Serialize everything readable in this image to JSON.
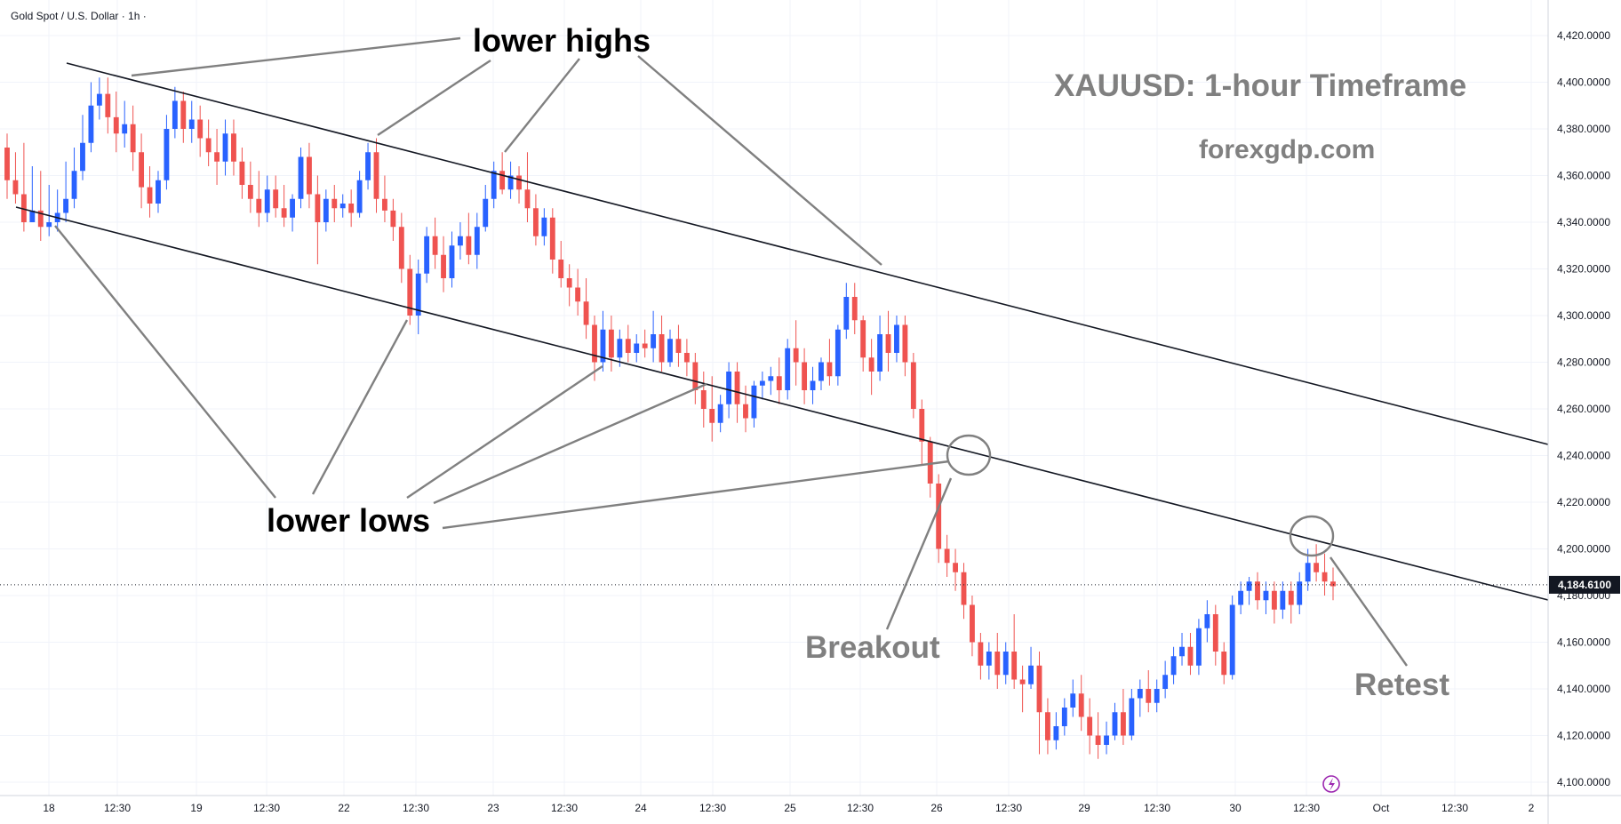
{
  "header": {
    "symbol": "Gold Spot / U.S. Dollar · 1h ·"
  },
  "chart_data": {
    "type": "candlestick",
    "title": "XAUUSD: 1-hour Timeframe",
    "watermark": "forexgdp.com",
    "ylim": [
      4090,
      4430
    ],
    "y_ticks": [
      "4,420.0000",
      "4,400.0000",
      "4,380.0000",
      "4,360.0000",
      "4,340.0000",
      "4,320.0000",
      "4,300.0000",
      "4,280.0000",
      "4,260.0000",
      "4,240.0000",
      "4,220.0000",
      "4,200.0000",
      "4,180.0000",
      "4,160.0000",
      "4,140.0000",
      "4,120.0000",
      "4,100.0000"
    ],
    "x_ticks": [
      "18",
      "12:30",
      "19",
      "12:30",
      "22",
      "12:30",
      "23",
      "12:30",
      "24",
      "12:30",
      "25",
      "12:30",
      "26",
      "12:30",
      "29",
      "12:30",
      "30",
      "12:30",
      "Oct",
      "12:30",
      "2"
    ],
    "current_price": 4184.61,
    "current_price_label": "4,184.6100",
    "colors": {
      "up": "#2962ff",
      "down": "#ef5350",
      "grid": "#f0f3fa",
      "trendline": "#131722",
      "pointer": "#808080"
    },
    "annotations": {
      "lower_highs": "lower highs",
      "lower_lows": "lower lows",
      "breakout": "Breakout",
      "retest": "Retest"
    },
    "channel": {
      "upper": {
        "from": [
          "18 12:30",
          4403
        ],
        "to": [
          "2",
          4236
        ]
      },
      "lower": {
        "from": [
          "18",
          4345
        ],
        "to": [
          "2",
          4168
        ]
      }
    },
    "candles": [
      [
        4372,
        4378,
        4358,
        4350
      ],
      [
        4358,
        4370,
        4352,
        4348
      ],
      [
        4352,
        4374,
        4340,
        4336
      ],
      [
        4340,
        4364,
        4345,
        4340
      ],
      [
        4345,
        4362,
        4338,
        4332
      ],
      [
        4338,
        4356,
        4340,
        4334
      ],
      [
        4340,
        4354,
        4344,
        4336
      ],
      [
        4344,
        4366,
        4350,
        4340
      ],
      [
        4350,
        4372,
        4362,
        4346
      ],
      [
        4362,
        4386,
        4374,
        4358
      ],
      [
        4374,
        4400,
        4390,
        4370
      ],
      [
        4390,
        4402,
        4395,
        4384
      ],
      [
        4395,
        4402,
        4385,
        4378
      ],
      [
        4385,
        4396,
        4378,
        4370
      ],
      [
        4378,
        4392,
        4382,
        4372
      ],
      [
        4382,
        4390,
        4370,
        4362
      ],
      [
        4370,
        4378,
        4355,
        4346
      ],
      [
        4355,
        4364,
        4348,
        4342
      ],
      [
        4348,
        4362,
        4358,
        4344
      ],
      [
        4358,
        4386,
        4380,
        4354
      ],
      [
        4380,
        4398,
        4392,
        4376
      ],
      [
        4392,
        4396,
        4380,
        4374
      ],
      [
        4380,
        4392,
        4384,
        4374
      ],
      [
        4384,
        4390,
        4376,
        4368
      ],
      [
        4376,
        4384,
        4370,
        4364
      ],
      [
        4370,
        4380,
        4366,
        4356
      ],
      [
        4366,
        4384,
        4378,
        4360
      ],
      [
        4378,
        4384,
        4366,
        4360
      ],
      [
        4366,
        4372,
        4356,
        4350
      ],
      [
        4356,
        4366,
        4350,
        4344
      ],
      [
        4350,
        4362,
        4344,
        4338
      ],
      [
        4344,
        4360,
        4354,
        4340
      ],
      [
        4354,
        4360,
        4346,
        4342
      ],
      [
        4346,
        4356,
        4342,
        4338
      ],
      [
        4342,
        4352,
        4350,
        4336
      ],
      [
        4350,
        4372,
        4368,
        4346
      ],
      [
        4368,
        4374,
        4352,
        4346
      ],
      [
        4352,
        4360,
        4340,
        4322
      ],
      [
        4340,
        4354,
        4350,
        4336
      ],
      [
        4350,
        4356,
        4346,
        4340
      ],
      [
        4346,
        4352,
        4348,
        4342
      ],
      [
        4348,
        4354,
        4344,
        4338
      ],
      [
        4344,
        4362,
        4358,
        4342
      ],
      [
        4358,
        4374,
        4370,
        4354
      ],
      [
        4370,
        4376,
        4350,
        4344
      ],
      [
        4350,
        4360,
        4345,
        4340
      ],
      [
        4345,
        4350,
        4338,
        4332
      ],
      [
        4338,
        4344,
        4320,
        4314
      ],
      [
        4320,
        4326,
        4300,
        4296
      ],
      [
        4300,
        4324,
        4318,
        4292
      ],
      [
        4318,
        4338,
        4334,
        4314
      ],
      [
        4334,
        4342,
        4326,
        4320
      ],
      [
        4326,
        4334,
        4316,
        4310
      ],
      [
        4316,
        4336,
        4330,
        4312
      ],
      [
        4330,
        4340,
        4334,
        4324
      ],
      [
        4334,
        4344,
        4326,
        4322
      ],
      [
        4326,
        4344,
        4338,
        4320
      ],
      [
        4338,
        4356,
        4350,
        4336
      ],
      [
        4350,
        4366,
        4362,
        4346
      ],
      [
        4362,
        4370,
        4354,
        4352
      ],
      [
        4354,
        4366,
        4360,
        4350
      ],
      [
        4360,
        4364,
        4354,
        4348
      ],
      [
        4354,
        4370,
        4346,
        4340
      ],
      [
        4346,
        4352,
        4334,
        4330
      ],
      [
        4334,
        4346,
        4342,
        4330
      ],
      [
        4342,
        4346,
        4324,
        4318
      ],
      [
        4324,
        4332,
        4316,
        4312
      ],
      [
        4316,
        4322,
        4312,
        4304
      ],
      [
        4312,
        4320,
        4306,
        4300
      ],
      [
        4306,
        4316,
        4296,
        4290
      ],
      [
        4296,
        4300,
        4280,
        4272
      ],
      [
        4280,
        4302,
        4294,
        4276
      ],
      [
        4294,
        4300,
        4282,
        4276
      ],
      [
        4282,
        4294,
        4290,
        4278
      ],
      [
        4290,
        4296,
        4284,
        4280
      ],
      [
        4284,
        4292,
        4288,
        4280
      ],
      [
        4288,
        4294,
        4286,
        4282
      ],
      [
        4286,
        4302,
        4292,
        4280
      ],
      [
        4292,
        4300,
        4280,
        4276
      ],
      [
        4280,
        4294,
        4290,
        4278
      ],
      [
        4290,
        4296,
        4284,
        4278
      ],
      [
        4284,
        4290,
        4280,
        4274
      ],
      [
        4280,
        4284,
        4268,
        4262
      ],
      [
        4268,
        4276,
        4260,
        4252
      ],
      [
        4260,
        4274,
        4254,
        4246
      ],
      [
        4254,
        4266,
        4262,
        4250
      ],
      [
        4262,
        4280,
        4276,
        4256
      ],
      [
        4276,
        4280,
        4262,
        4254
      ],
      [
        4262,
        4270,
        4256,
        4250
      ],
      [
        4256,
        4272,
        4270,
        4252
      ],
      [
        4270,
        4276,
        4272,
        4264
      ],
      [
        4272,
        4278,
        4274,
        4266
      ],
      [
        4274,
        4282,
        4268,
        4262
      ],
      [
        4268,
        4290,
        4286,
        4264
      ],
      [
        4286,
        4298,
        4280,
        4270
      ],
      [
        4280,
        4286,
        4268,
        4262
      ],
      [
        4268,
        4278,
        4272,
        4262
      ],
      [
        4272,
        4282,
        4280,
        4268
      ],
      [
        4280,
        4290,
        4274,
        4270
      ],
      [
        4274,
        4296,
        4294,
        4270
      ],
      [
        4294,
        4314,
        4308,
        4290
      ],
      [
        4308,
        4314,
        4298,
        4292
      ],
      [
        4298,
        4300,
        4282,
        4276
      ],
      [
        4282,
        4290,
        4276,
        4266
      ],
      [
        4276,
        4300,
        4292,
        4272
      ],
      [
        4292,
        4302,
        4284,
        4276
      ],
      [
        4284,
        4300,
        4296,
        4280
      ],
      [
        4296,
        4300,
        4280,
        4274
      ],
      [
        4280,
        4284,
        4260,
        4256
      ],
      [
        4260,
        4264,
        4246,
        4236
      ],
      [
        4246,
        4248,
        4228,
        4222
      ],
      [
        4228,
        4232,
        4200,
        4194
      ],
      [
        4200,
        4206,
        4194,
        4188
      ],
      [
        4194,
        4200,
        4190,
        4182
      ],
      [
        4190,
        4194,
        4176,
        4170
      ],
      [
        4176,
        4180,
        4160,
        4154
      ],
      [
        4160,
        4164,
        4150,
        4144
      ],
      [
        4150,
        4160,
        4156,
        4144
      ],
      [
        4156,
        4164,
        4146,
        4140
      ],
      [
        4146,
        4160,
        4156,
        4142
      ],
      [
        4156,
        4172,
        4144,
        4140
      ],
      [
        4144,
        4150,
        4142,
        4130
      ],
      [
        4142,
        4158,
        4150,
        4140
      ],
      [
        4150,
        4156,
        4130,
        4112
      ],
      [
        4130,
        4136,
        4118,
        4112
      ],
      [
        4118,
        4130,
        4124,
        4114
      ],
      [
        4124,
        4136,
        4132,
        4120
      ],
      [
        4132,
        4144,
        4138,
        4128
      ],
      [
        4138,
        4146,
        4128,
        4122
      ],
      [
        4128,
        4136,
        4120,
        4112
      ],
      [
        4120,
        4130,
        4116,
        4110
      ],
      [
        4116,
        4126,
        4120,
        4112
      ],
      [
        4120,
        4134,
        4130,
        4118
      ],
      [
        4130,
        4140,
        4120,
        4116
      ],
      [
        4120,
        4140,
        4136,
        4118
      ],
      [
        4136,
        4144,
        4140,
        4128
      ],
      [
        4140,
        4148,
        4134,
        4130
      ],
      [
        4134,
        4144,
        4140,
        4130
      ],
      [
        4140,
        4152,
        4146,
        4136
      ],
      [
        4146,
        4158,
        4154,
        4142
      ],
      [
        4154,
        4164,
        4158,
        4150
      ],
      [
        4158,
        4164,
        4150,
        4146
      ],
      [
        4150,
        4170,
        4166,
        4146
      ],
      [
        4166,
        4178,
        4172,
        4160
      ],
      [
        4172,
        4176,
        4156,
        4150
      ],
      [
        4156,
        4160,
        4146,
        4142
      ],
      [
        4146,
        4180,
        4176,
        4144
      ],
      [
        4176,
        4186,
        4182,
        4172
      ],
      [
        4182,
        4188,
        4186,
        4176
      ],
      [
        4186,
        4190,
        4178,
        4174
      ],
      [
        4178,
        4186,
        4182,
        4172
      ],
      [
        4182,
        4186,
        4174,
        4168
      ],
      [
        4174,
        4186,
        4182,
        4170
      ],
      [
        4182,
        4186,
        4176,
        4168
      ],
      [
        4176,
        4190,
        4186,
        4172
      ],
      [
        4186,
        4200,
        4194,
        4182
      ],
      [
        4194,
        4202,
        4190,
        4186
      ],
      [
        4190,
        4198,
        4186,
        4180
      ],
      [
        4186,
        4192,
        4184,
        4178
      ]
    ]
  }
}
